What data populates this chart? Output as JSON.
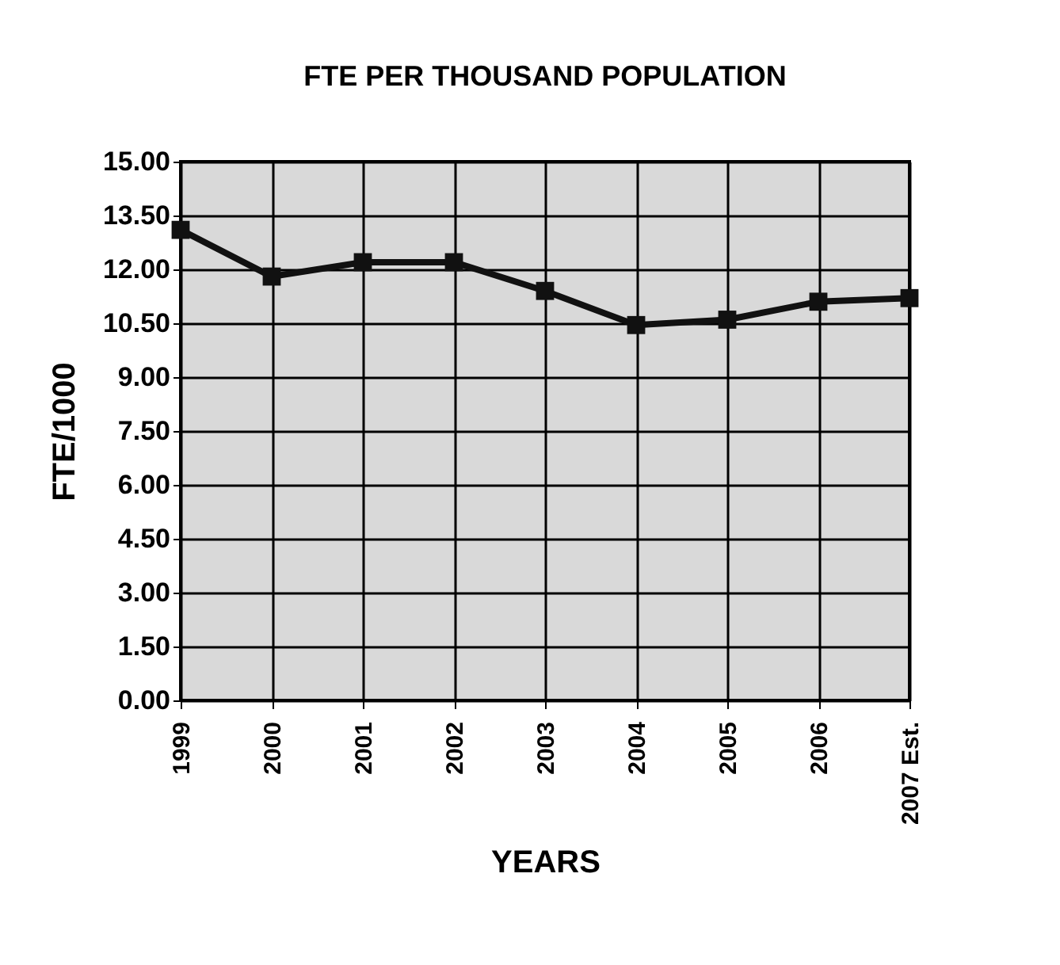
{
  "chart_data": {
    "type": "line",
    "title": "FTE PER THOUSAND POPULATION",
    "xlabel": "YEARS",
    "ylabel": "FTE/1000",
    "categories": [
      "1999",
      "2000",
      "2001",
      "2002",
      "2003",
      "2004",
      "2005",
      "2006",
      "2007 Est."
    ],
    "series": [
      {
        "color": "#111111",
        "values": [
          13.1,
          11.8,
          12.2,
          12.2,
          11.4,
          10.45,
          10.6,
          11.1,
          11.2
        ]
      }
    ],
    "ylim": [
      0,
      15
    ],
    "yticks": [
      {
        "value": 0,
        "label": "0.00"
      },
      {
        "value": 1.5,
        "label": "1.50"
      },
      {
        "value": 3,
        "label": "3.00"
      },
      {
        "value": 4.5,
        "label": "4.50"
      },
      {
        "value": 6,
        "label": "6.00"
      },
      {
        "value": 7.5,
        "label": "7.50"
      },
      {
        "value": 9,
        "label": "9.00"
      },
      {
        "value": 10.5,
        "label": "10.50"
      },
      {
        "value": 12,
        "label": "12.00"
      },
      {
        "value": 13.5,
        "label": "13.50"
      },
      {
        "value": 15,
        "label": "15.00"
      }
    ],
    "grid": true,
    "marker": "square",
    "line_style": "solid"
  }
}
